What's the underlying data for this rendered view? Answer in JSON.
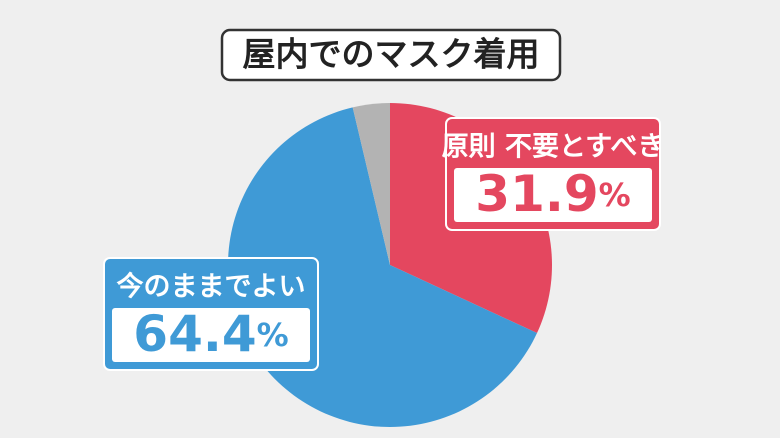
{
  "chart_data": {
    "type": "pie",
    "title": "屋内でのマスク着用",
    "categories": [
      "原則 不要とすべき",
      "今のままでよい",
      null
    ],
    "values": [
      31.9,
      64.4,
      3.7
    ],
    "value_labels": [
      "31.9%",
      "64.4%",
      null
    ],
    "colors": [
      "#e4475f",
      "#3f9ad6",
      "#b3b3b3"
    ],
    "start": "top",
    "direction": "clockwise"
  }
}
